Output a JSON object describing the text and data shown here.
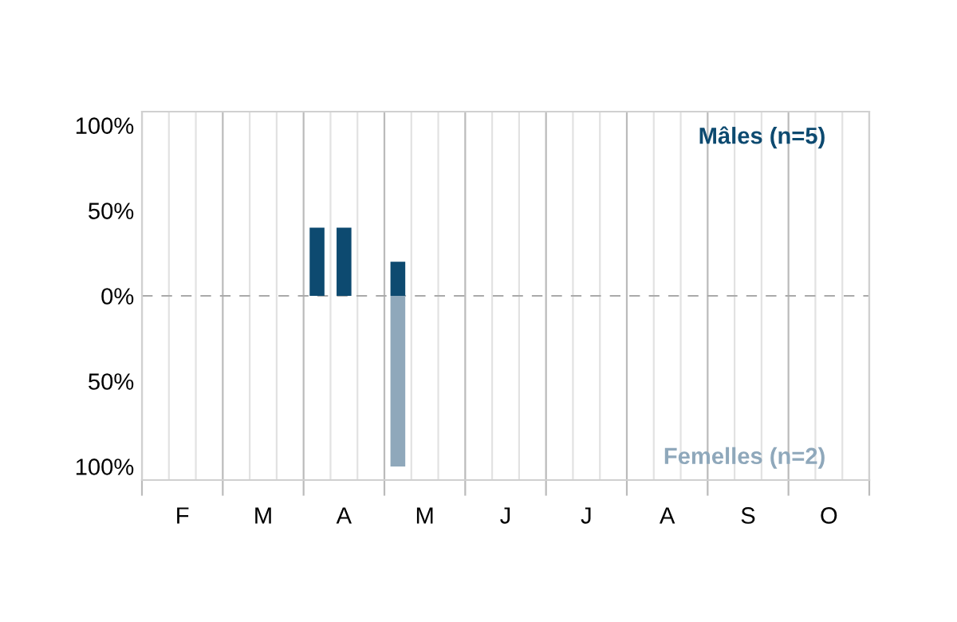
{
  "chart_data": {
    "type": "bar",
    "categories": [
      null,
      "F",
      null,
      null,
      "M",
      null,
      null,
      "A",
      null,
      null,
      "M",
      null,
      null,
      "J",
      null,
      null,
      "J",
      null,
      null,
      "A",
      null,
      null,
      "S",
      null,
      null,
      "O",
      null
    ],
    "series": [
      {
        "name": "Mâles (n=5)",
        "color": "#0d4a70",
        "values": [
          null,
          null,
          null,
          null,
          null,
          null,
          40,
          40,
          null,
          20,
          null,
          null,
          null,
          null,
          null,
          null,
          null,
          null,
          null,
          null,
          null,
          null,
          null,
          null,
          null,
          null,
          null
        ]
      },
      {
        "name": "Femelles (n=2)",
        "color": "#8fa8bb",
        "values": [
          null,
          null,
          null,
          null,
          null,
          null,
          null,
          null,
          null,
          -100,
          null,
          null,
          null,
          null,
          null,
          null,
          null,
          null,
          null,
          null,
          null,
          null,
          null,
          null,
          null,
          null,
          null
        ]
      }
    ],
    "ylim": [
      -108,
      108
    ],
    "yticks": [
      {
        "value": -100,
        "label": "100%"
      },
      {
        "value": -50,
        "label": "50%"
      },
      {
        "value": 0,
        "label": "0%"
      },
      {
        "value": 50,
        "label": "50%"
      },
      {
        "value": 100,
        "label": "100%"
      }
    ],
    "grid": "x",
    "ref_lines": [
      {
        "axis": "y",
        "value": 0,
        "color": "#aaaaaa",
        "line_style": "dashed"
      }
    ],
    "legend": "right"
  }
}
